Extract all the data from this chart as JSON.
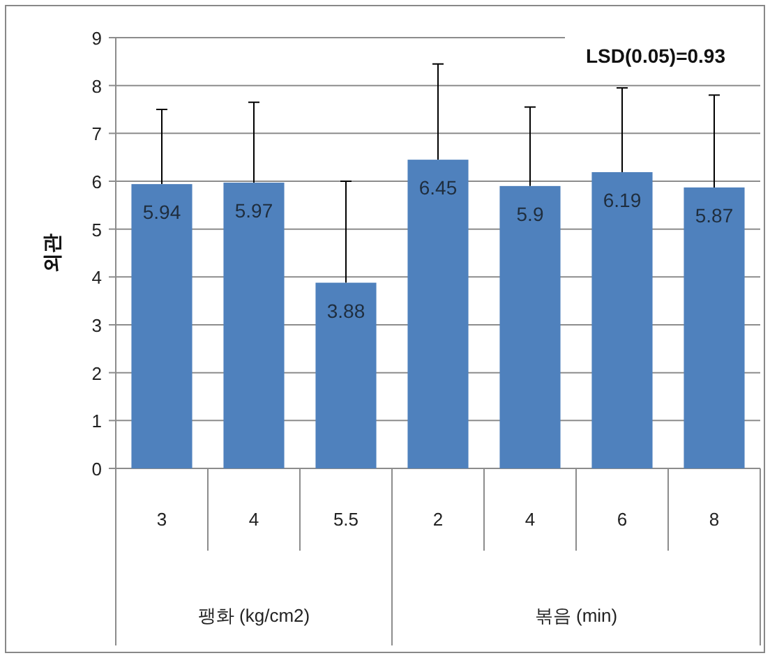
{
  "chart_data": {
    "type": "bar",
    "ylabel": "외관",
    "categories": [
      "3",
      "4",
      "5.5",
      "2",
      "4",
      "6",
      "8"
    ],
    "values": [
      5.94,
      5.97,
      3.88,
      6.45,
      5.9,
      6.19,
      5.87
    ],
    "errors": [
      [
        5.94,
        7.5
      ],
      [
        5.97,
        7.65
      ],
      [
        3.88,
        6.0
      ],
      [
        6.45,
        8.45
      ],
      [
        5.9,
        7.55
      ],
      [
        6.19,
        7.95
      ],
      [
        5.87,
        7.8
      ]
    ],
    "color": "#4f81bd",
    "data_labels": true,
    "ylim": [
      0,
      9
    ],
    "yticks": [
      0,
      1,
      2,
      3,
      4,
      5,
      6,
      7,
      8,
      9
    ],
    "grid": "y",
    "annotations": [
      "팽화 (kg/cm2)",
      "볶음 (min)",
      "LSD(0.05)=0.93"
    ]
  }
}
